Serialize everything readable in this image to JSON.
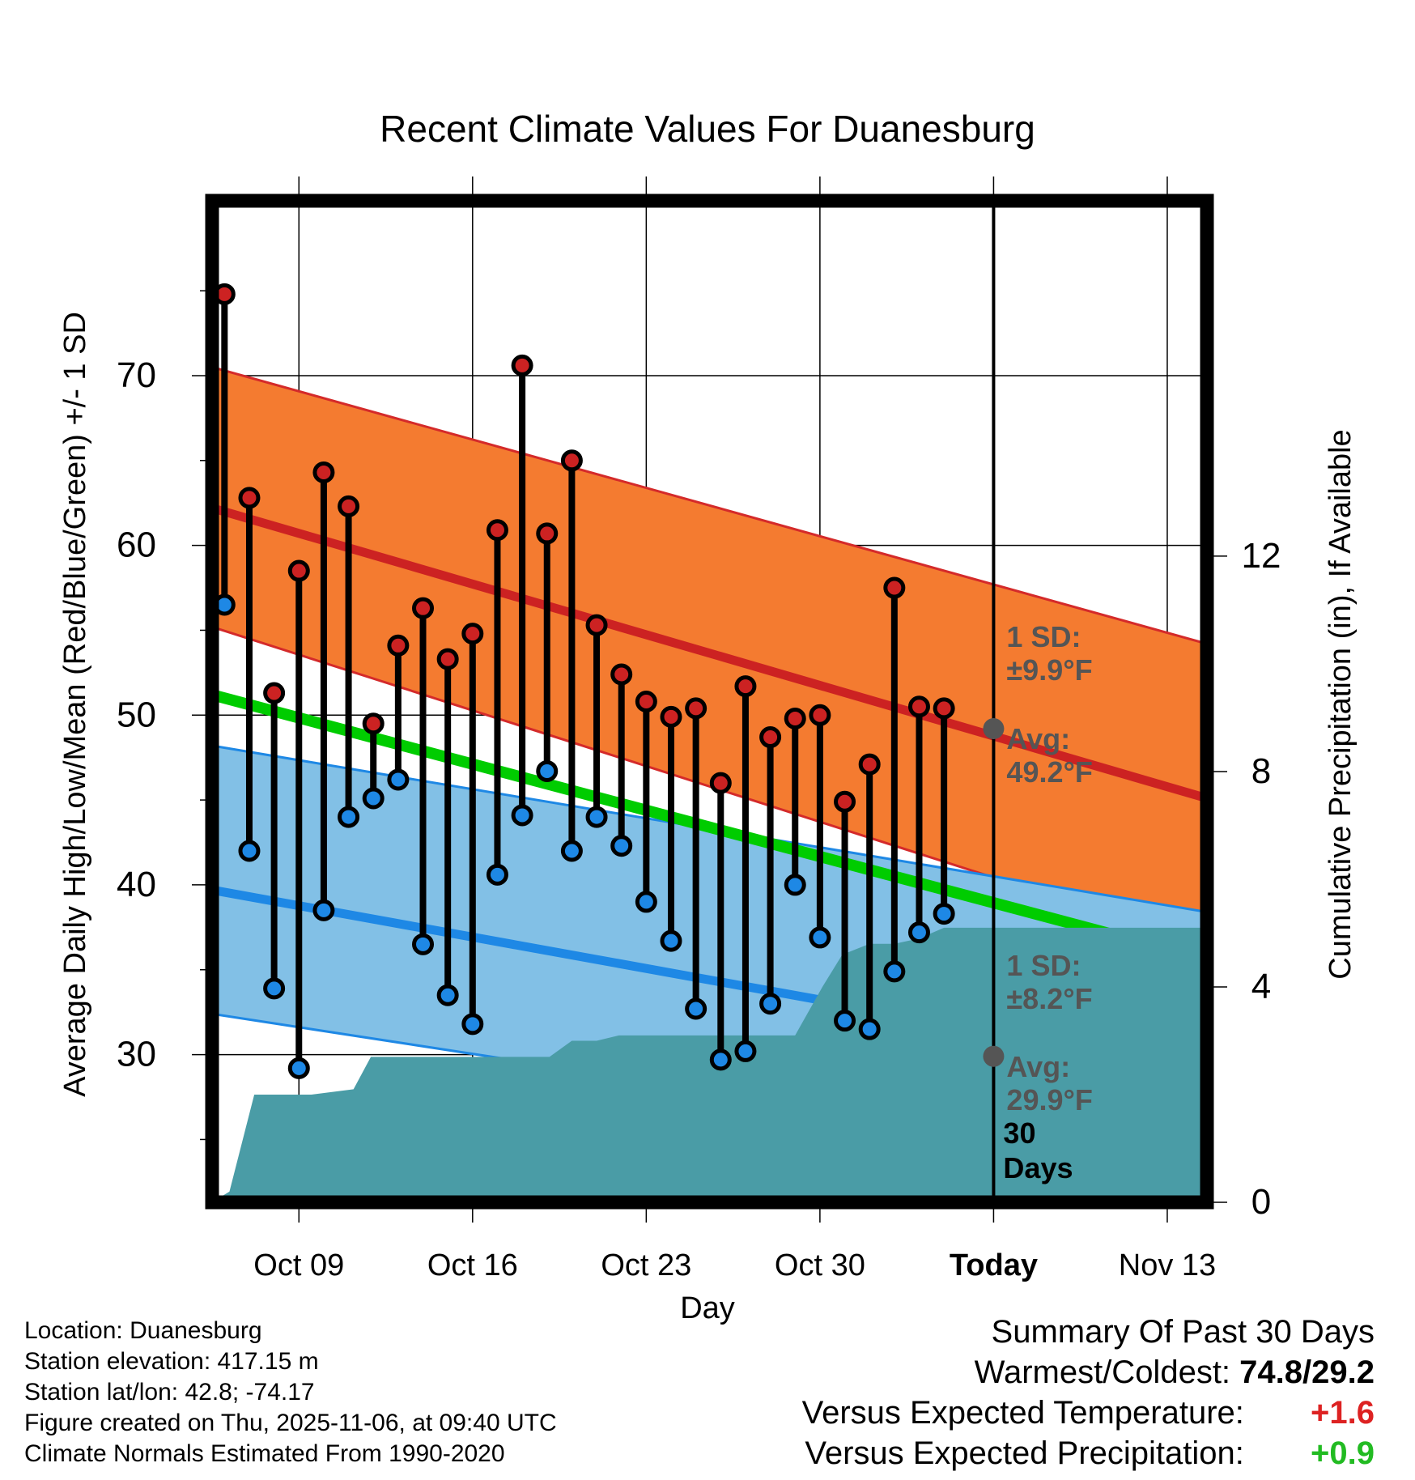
{
  "chart_data": {
    "type": "line",
    "title": "Recent Climate Values For Duanesburg",
    "xlabel": "Day",
    "ylabel": "Average Daily High/Low/Mean (Red/Blue/Green) +/- 1 SD",
    "y2label": "Cumulative Precipitation (in), If Available",
    "x_day_range": [
      4.5,
      44.6
    ],
    "ylim": [
      21.3,
      80.3
    ],
    "y2lim": [
      0,
      18.6
    ],
    "grid": true,
    "x_ticks": [
      {
        "day": 8,
        "label": "Oct 09"
      },
      {
        "day": 15,
        "label": "Oct 16"
      },
      {
        "day": 22,
        "label": "Oct 23"
      },
      {
        "day": 29,
        "label": "Oct 30"
      },
      {
        "day": 36,
        "label": "Today"
      },
      {
        "day": 43,
        "label": "Nov 13"
      }
    ],
    "y_ticks": [
      30,
      40,
      50,
      60,
      70
    ],
    "y_minor_ticks": [
      25,
      35,
      45,
      55,
      65,
      75
    ],
    "y2_ticks": [
      0,
      4,
      8,
      12
    ],
    "today_day": 36,
    "normals": {
      "high_mean": [
        62.2,
        45.1
      ],
      "high_sd_band": [
        [
          70.5,
          54.2
        ],
        [
          55.2,
          36.4
        ]
      ],
      "mean": [
        51.2,
        35.6
      ],
      "low_mean": [
        39.7,
        29.1
      ],
      "low_sd_band": [
        [
          48.2,
          38.4
        ],
        [
          32.4,
          23.4
        ]
      ],
      "endpoint_days": [
        4.5,
        44.6
      ]
    },
    "series": [
      {
        "name": "High",
        "color": "#CC2222",
        "values": [
          74.8,
          62.8,
          51.3,
          58.5,
          64.3,
          62.3,
          49.5,
          54.1,
          56.3,
          53.3,
          54.8,
          60.9,
          70.6,
          60.7,
          65.0,
          55.3,
          52.4,
          50.8,
          49.9,
          50.4,
          46.0,
          51.7,
          48.7,
          49.8,
          50.0,
          44.9,
          47.1,
          57.5,
          50.5,
          50.4
        ]
      },
      {
        "name": "Low",
        "color": "#1E88E5",
        "values": [
          56.5,
          42.0,
          33.9,
          29.2,
          38.5,
          44.0,
          45.1,
          46.2,
          36.5,
          33.5,
          31.8,
          40.6,
          44.1,
          46.7,
          42.0,
          44.0,
          42.3,
          39.0,
          36.7,
          32.7,
          29.7,
          30.2,
          33.0,
          40.0,
          36.9,
          32.0,
          31.5,
          34.9,
          37.2,
          38.3
        ]
      }
    ],
    "obs_days": [
      5,
      6,
      7,
      8,
      9,
      10,
      11,
      12,
      13,
      14,
      15,
      16,
      17,
      18,
      19,
      20,
      21,
      22,
      23,
      24,
      25,
      26,
      27,
      28,
      29,
      30,
      31,
      32,
      33,
      34
    ],
    "precip_cumulative": {
      "days": [
        4.5,
        5.2,
        6.2,
        7.0,
        8.5,
        10.2,
        10.9,
        12.0,
        14.0,
        15.0,
        17.0,
        18.1,
        19.0,
        20.0,
        20.9,
        22.0,
        24.0,
        27.0,
        27.3,
        28.0,
        29.1,
        29.9,
        31.0,
        32.0,
        33.0,
        34.0,
        36.0,
        44.6
      ],
      "values": [
        0.0,
        0.2,
        2.0,
        2.0,
        2.0,
        2.1,
        2.7,
        2.7,
        2.7,
        2.7,
        2.7,
        2.7,
        3.0,
        3.0,
        3.1,
        3.1,
        3.1,
        3.1,
        3.1,
        3.1,
        4.0,
        4.6,
        4.8,
        4.8,
        4.9,
        5.1,
        5.1,
        5.1
      ]
    },
    "annotations": {
      "high_sd": {
        "l1": "1 SD:",
        "l2": "±9.9°F"
      },
      "high_avg": {
        "l1": "Avg:",
        "l2": "49.2°F",
        "value": 49.2
      },
      "low_sd": {
        "l1": "1 SD:",
        "l2": "±8.2°F"
      },
      "low_avg": {
        "l1": "Avg:",
        "l2": "29.9°F",
        "value": 29.9
      },
      "window": {
        "l1": "30",
        "l2": "Days"
      }
    },
    "colors": {
      "high_band": "#F47B30",
      "high_band_edge": "#D42A2A",
      "high_line": "#CC2222",
      "low_band": "#82C0E6",
      "low_band_edge": "#1E88E5",
      "low_line": "#1E88E5",
      "mean_line": "#00CC00",
      "precip": "#4A9CA6",
      "annotation": "#555555"
    }
  },
  "info": {
    "location": "Location: Duanesburg",
    "elevation": "Station elevation: 417.15 m",
    "latlon": "Station lat/lon: 42.8; -74.17",
    "created": "Figure created on Thu, 2025-11-06, at 09:40 UTC",
    "normals": "Climate Normals Estimated From 1990-2020"
  },
  "summary": {
    "title": "Summary Of Past 30 Days",
    "warm_cold_label": "Warmest/Coldest:",
    "warm_cold_value": "74.8/29.2",
    "temp_label": "Versus Expected Temperature:",
    "temp_value": "+1.6",
    "temp_color": "#DD2222",
    "precip_label": "Versus Expected Precipitation:",
    "precip_value": "+0.9",
    "precip_color": "#22BB22"
  }
}
